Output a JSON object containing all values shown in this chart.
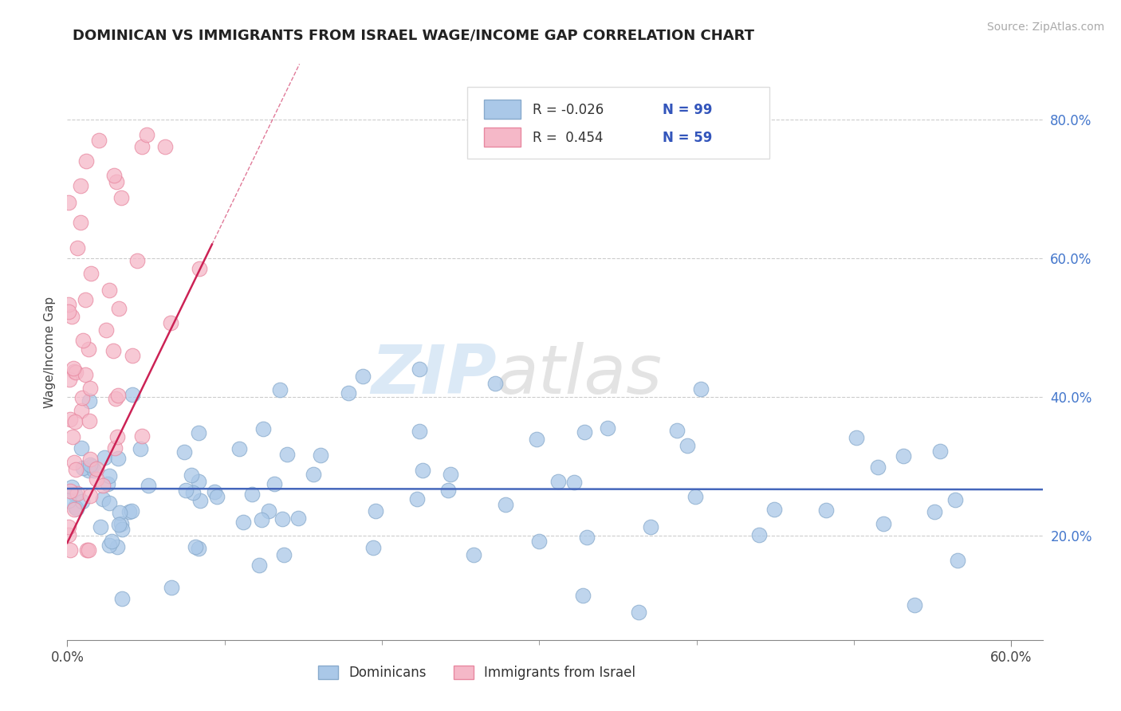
{
  "title": "DOMINICAN VS IMMIGRANTS FROM ISRAEL WAGE/INCOME GAP CORRELATION CHART",
  "source": "Source: ZipAtlas.com",
  "ylabel": "Wage/Income Gap",
  "xlim": [
    0.0,
    0.62
  ],
  "ylim": [
    0.05,
    0.88
  ],
  "xticks": [
    0.0,
    0.6
  ],
  "xticklabels": [
    "0.0%",
    "60.0%"
  ],
  "yticks": [
    0.2,
    0.4,
    0.6,
    0.8
  ],
  "yticklabels": [
    "20.0%",
    "40.0%",
    "60.0%",
    "80.0%"
  ],
  "blue_color": "#aac8e8",
  "pink_color": "#f5b8c8",
  "blue_edge": "#88aacc",
  "pink_edge": "#e888a0",
  "blue_line_color": "#4466bb",
  "pink_line_color": "#cc2255",
  "pink_line_dash": true,
  "watermark_zip": "ZIP",
  "watermark_atlas": "atlas",
  "legend_R_blue": "R = -0.026",
  "legend_N_blue": "N = 99",
  "legend_R_pink": "R =  0.454",
  "legend_N_pink": "N = 59",
  "legend_label_blue": "Dominicans",
  "legend_label_pink": "Immigrants from Israel",
  "blue_R": -0.026,
  "blue_N": 99,
  "pink_R": 0.454,
  "pink_N": 59,
  "background_color": "#ffffff",
  "grid_color": "#cccccc",
  "title_color": "#222222",
  "source_color": "#aaaaaa",
  "blue_trend_y": 0.268,
  "blue_trend_slope": -0.002,
  "pink_trend_x0": 0.0,
  "pink_trend_y0": 0.19,
  "pink_trend_x1": 0.092,
  "pink_trend_y1": 0.62
}
